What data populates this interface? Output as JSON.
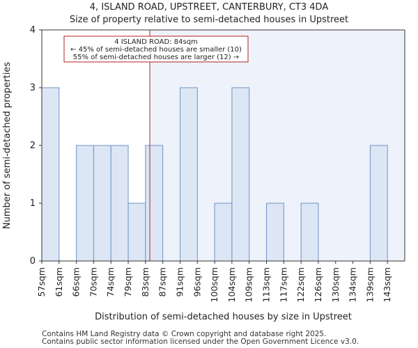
{
  "chart_data": {
    "type": "bar",
    "title": "4, ISLAND ROAD, UPSTREET, CANTERBURY, CT3 4DA",
    "subtitle": "Size of property relative to semi-detached houses in Upstreet",
    "xlabel": "Distribution of semi-detached houses by size in Upstreet",
    "ylabel": "Number of semi-detached properties",
    "categories": [
      "57sqm",
      "61sqm",
      "66sqm",
      "70sqm",
      "74sqm",
      "79sqm",
      "83sqm",
      "87sqm",
      "91sqm",
      "96sqm",
      "100sqm",
      "104sqm",
      "109sqm",
      "113sqm",
      "117sqm",
      "122sqm",
      "126sqm",
      "130sqm",
      "134sqm",
      "139sqm",
      "143sqm"
    ],
    "values": [
      3,
      0,
      2,
      2,
      2,
      1,
      2,
      0,
      3,
      0,
      1,
      3,
      0,
      1,
      0,
      1,
      0,
      0,
      0,
      2,
      0
    ],
    "ylim": [
      0,
      4
    ],
    "yticks": [
      0,
      1,
      2,
      3,
      4
    ],
    "grid": false,
    "marker_value": 84,
    "annotation": {
      "line1": "4 ISLAND ROAD: 84sqm",
      "line2": "← 45% of semi-detached houses are smaller (10)",
      "line3": "55% of semi-detached houses are larger (12) →"
    },
    "colors": {
      "bar_fill": "#dce6f4",
      "bar_stroke": "#6f93c6",
      "marker": "#b22222",
      "shade": "#eef2fa"
    }
  },
  "footer": {
    "line1": "Contains HM Land Registry data © Crown copyright and database right 2025.",
    "line2": "Contains public sector information licensed under the Open Government Licence v3.0."
  }
}
